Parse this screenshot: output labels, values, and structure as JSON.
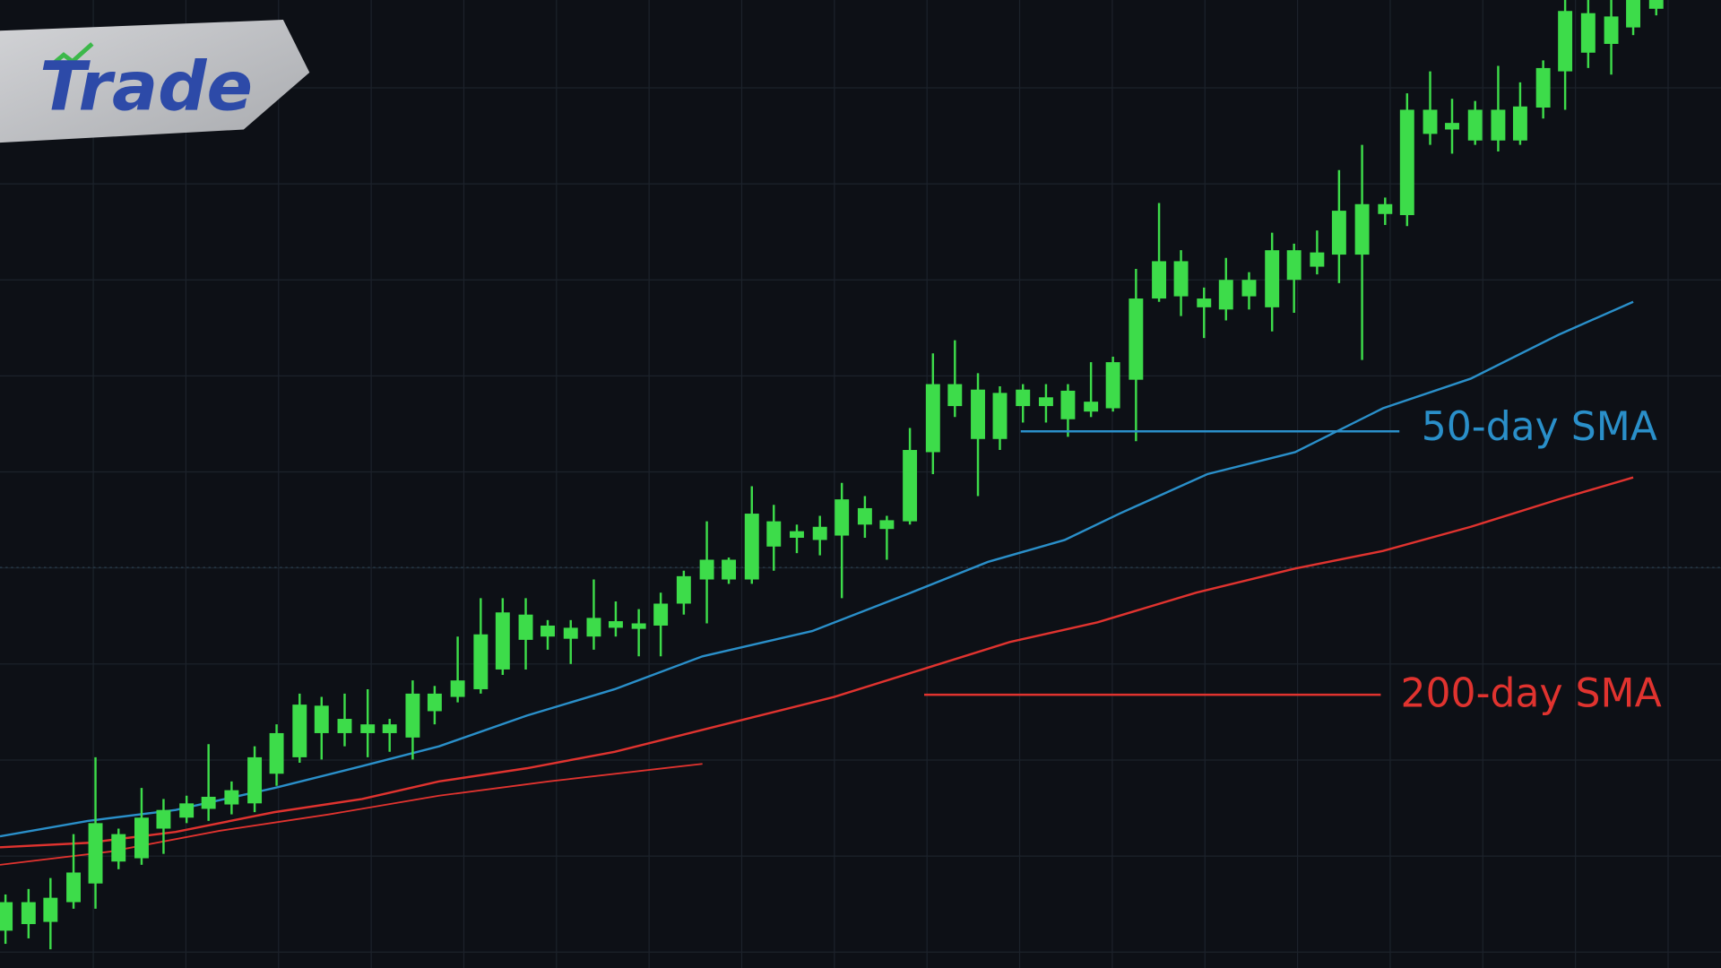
{
  "logo": "Trade",
  "chart_data": {
    "type": "candlestick",
    "color": "#3ddc4a",
    "xlim": [
      0,
      1568
    ],
    "ylim": [
      0,
      882
    ],
    "grid": true,
    "x": [
      5,
      26,
      46,
      67,
      87,
      108,
      129,
      149,
      170,
      190,
      211,
      232,
      252,
      273,
      293,
      314,
      335,
      355,
      376,
      396,
      417,
      438,
      458,
      479,
      499,
      520,
      541,
      561,
      582,
      602,
      623,
      644,
      664,
      685,
      705,
      726,
      747,
      767,
      788,
      808,
      829,
      850,
      870,
      891,
      911,
      932,
      953,
      973,
      994,
      1014,
      1035,
      1056,
      1076,
      1097,
      1117,
      1138,
      1159,
      1179,
      1200,
      1220,
      1241,
      1262,
      1282,
      1303,
      1323,
      1344,
      1365,
      1385,
      1406,
      1426,
      1447,
      1468,
      1488,
      1509
    ],
    "open": [
      34,
      40,
      42,
      60,
      77,
      97,
      100,
      127,
      137,
      145,
      149,
      150,
      177,
      192,
      214,
      214,
      214,
      214,
      210,
      234,
      247,
      254,
      272,
      299,
      302,
      300,
      302,
      310,
      309,
      312,
      332,
      354,
      354,
      354,
      384,
      392,
      390,
      394,
      404,
      400,
      407,
      470,
      512,
      482,
      482,
      512,
      512,
      500,
      507,
      510,
      536,
      610,
      612,
      602,
      600,
      612,
      602,
      627,
      639,
      650,
      650,
      687,
      686,
      760,
      764,
      754,
      754,
      754,
      784,
      817,
      834,
      842,
      857,
      874
    ],
    "high": [
      67,
      72,
      82,
      122,
      192,
      127,
      164,
      154,
      157,
      204,
      170,
      202,
      222,
      250,
      247,
      250,
      254,
      227,
      262,
      257,
      302,
      337,
      337,
      337,
      317,
      317,
      354,
      334,
      327,
      342,
      362,
      407,
      374,
      439,
      422,
      404,
      412,
      442,
      430,
      412,
      492,
      560,
      572,
      542,
      530,
      532,
      532,
      532,
      552,
      557,
      637,
      697,
      654,
      620,
      647,
      634,
      670,
      660,
      672,
      727,
      750,
      702,
      797,
      817,
      792,
      790,
      822,
      807,
      827,
      882,
      882,
      882,
      882,
      882
    ],
    "low": [
      22,
      27,
      17,
      54,
      54,
      90,
      94,
      104,
      132,
      134,
      140,
      142,
      166,
      187,
      190,
      202,
      192,
      197,
      190,
      222,
      242,
      250,
      267,
      272,
      290,
      277,
      290,
      302,
      284,
      284,
      322,
      314,
      350,
      350,
      362,
      378,
      376,
      337,
      392,
      372,
      404,
      450,
      502,
      430,
      472,
      497,
      497,
      484,
      502,
      507,
      480,
      607,
      594,
      574,
      590,
      600,
      580,
      597,
      632,
      624,
      554,
      677,
      676,
      750,
      742,
      750,
      744,
      750,
      774,
      782,
      820,
      814,
      850,
      868
    ],
    "close": [
      60,
      60,
      64,
      87,
      132,
      122,
      137,
      144,
      150,
      156,
      162,
      192,
      214,
      240,
      239,
      227,
      222,
      222,
      250,
      250,
      262,
      304,
      324,
      322,
      312,
      310,
      319,
      316,
      314,
      332,
      357,
      372,
      372,
      414,
      407,
      398,
      402,
      427,
      419,
      408,
      472,
      532,
      532,
      527,
      524,
      527,
      520,
      526,
      516,
      552,
      610,
      644,
      644,
      610,
      627,
      627,
      654,
      654,
      652,
      690,
      696,
      696,
      782,
      782,
      770,
      782,
      782,
      785,
      820,
      872,
      870,
      867,
      882,
      882
    ],
    "lines": [
      {
        "name": "50-day SMA",
        "color": "#2a8fc9",
        "x": [
          0,
          80,
          160,
          250,
          330,
          400,
          480,
          560,
          640,
          740,
          830,
          900,
          970,
          1020,
          1100,
          1180,
          1260,
          1340,
          1420,
          1488
        ],
        "values": [
          120,
          134,
          144,
          164,
          184,
          202,
          230,
          254,
          284,
          307,
          342,
          370,
          390,
          414,
          450,
          470,
          510,
          537,
          577,
          607
        ]
      },
      {
        "name": "200-day SMA",
        "color": "#e0332f",
        "x": [
          0,
          80,
          160,
          250,
          330,
          400,
          480,
          560,
          640,
          760,
          840,
          920,
          1000,
          1090,
          1180,
          1260,
          1340,
          1420,
          1488
        ],
        "values": [
          110,
          114,
          124,
          142,
          154,
          170,
          182,
          197,
          217,
          247,
          272,
          297,
          315,
          342,
          364,
          380,
          402,
          427,
          447
        ]
      },
      {
        "color": "#e0332f",
        "x": [
          0,
          100,
          200,
          300,
          400,
          500,
          640
        ],
        "values": [
          94,
          106,
          125,
          140,
          157,
          170,
          186
        ]
      }
    ]
  }
}
